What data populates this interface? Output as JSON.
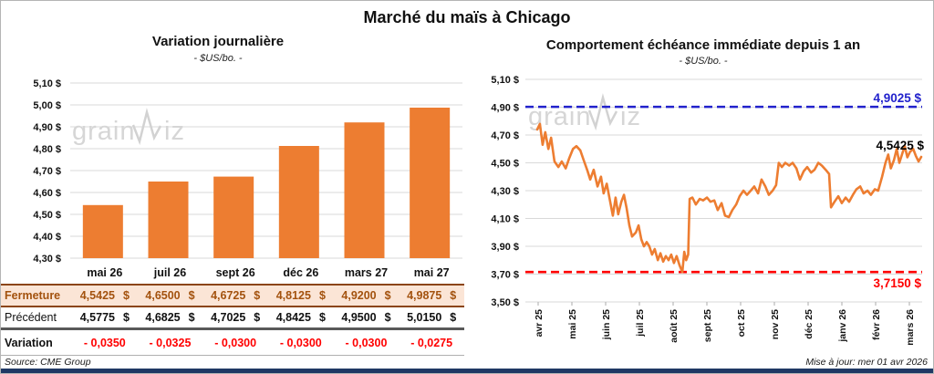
{
  "title": "Marché du maïs à Chicago",
  "watermark": {
    "prefix": "grain",
    "suffix": "iz"
  },
  "colors": {
    "accent_orange": "#ED7D31",
    "ref_blue": "#2222CC",
    "ref_red": "#FF0000",
    "grid": "#d9d9d9",
    "fermeture_bg": "#FBE5D6",
    "fermeture_text": "#A3520E",
    "bottom_bar": "#1F3864"
  },
  "chart_data": [
    {
      "type": "bar",
      "title": "Variation journalière",
      "subtitle": "- $US/bo. -",
      "categories": [
        "mai 26",
        "juil 26",
        "sept 26",
        "déc 26",
        "mars 27",
        "mai 27"
      ],
      "values": [
        4.5425,
        4.65,
        4.6725,
        4.8125,
        4.92,
        4.9875
      ],
      "ylim": [
        4.3,
        5.1
      ],
      "ytick_step": 0.1,
      "ytick_labels": [
        "5,10 $",
        "5,00 $",
        "4,90 $",
        "4,80 $",
        "4,70 $",
        "4,60 $",
        "4,50 $",
        "4,40 $",
        "4,30 $"
      ],
      "bar_color": "#ED7D31",
      "grid": true
    },
    {
      "type": "line",
      "title": "Comportement échéance immédiate depuis 1 an",
      "subtitle": "- $US/bo. -",
      "x_ticks": [
        "avr 25",
        "mai 25",
        "juin 25",
        "juil 25",
        "août 25",
        "sept 25",
        "oct 25",
        "nov 25",
        "déc 25",
        "janv 26",
        "févr 26",
        "mars 26"
      ],
      "ylim": [
        3.5,
        5.1
      ],
      "ytick_step": 0.2,
      "ytick_labels": [
        "5,10 $",
        "4,90 $",
        "4,70 $",
        "4,50 $",
        "4,30 $",
        "4,10 $",
        "3,90 $",
        "3,70 $",
        "3,50 $"
      ],
      "grid": true,
      "legend": "none",
      "ref_lines": [
        {
          "name": "high",
          "value": 4.9025,
          "label": "4,9025 $",
          "color": "#2222CC",
          "label_pos": "above"
        },
        {
          "name": "low",
          "value": 3.715,
          "label": "3,7150 $",
          "color": "#FF0000",
          "label_pos": "below"
        }
      ],
      "last_label": {
        "value": 4.5425,
        "label": "4,5425 $"
      },
      "series": [
        {
          "name": "échéance immédiate",
          "color": "#ED7D31",
          "points": [
            [
              0.0,
              4.74
            ],
            [
              0.007,
              4.78
            ],
            [
              0.014,
              4.63
            ],
            [
              0.021,
              4.72
            ],
            [
              0.029,
              4.6
            ],
            [
              0.036,
              4.68
            ],
            [
              0.045,
              4.51
            ],
            [
              0.055,
              4.47
            ],
            [
              0.064,
              4.51
            ],
            [
              0.074,
              4.46
            ],
            [
              0.083,
              4.53
            ],
            [
              0.093,
              4.6
            ],
            [
              0.102,
              4.62
            ],
            [
              0.112,
              4.59
            ],
            [
              0.121,
              4.52
            ],
            [
              0.131,
              4.44
            ],
            [
              0.138,
              4.38
            ],
            [
              0.147,
              4.45
            ],
            [
              0.157,
              4.33
            ],
            [
              0.166,
              4.4
            ],
            [
              0.173,
              4.28
            ],
            [
              0.181,
              4.35
            ],
            [
              0.19,
              4.22
            ],
            [
              0.197,
              4.12
            ],
            [
              0.204,
              4.25
            ],
            [
              0.211,
              4.13
            ],
            [
              0.219,
              4.22
            ],
            [
              0.226,
              4.27
            ],
            [
              0.233,
              4.17
            ],
            [
              0.24,
              4.05
            ],
            [
              0.247,
              3.97
            ],
            [
              0.257,
              4.0
            ],
            [
              0.264,
              4.05
            ],
            [
              0.271,
              3.95
            ],
            [
              0.278,
              3.9
            ],
            [
              0.285,
              3.93
            ],
            [
              0.292,
              3.9
            ],
            [
              0.299,
              3.84
            ],
            [
              0.306,
              3.88
            ],
            [
              0.314,
              3.8
            ],
            [
              0.321,
              3.85
            ],
            [
              0.328,
              3.79
            ],
            [
              0.335,
              3.83
            ],
            [
              0.342,
              3.8
            ],
            [
              0.349,
              3.84
            ],
            [
              0.356,
              3.78
            ],
            [
              0.363,
              3.83
            ],
            [
              0.371,
              3.76
            ],
            [
              0.378,
              3.715
            ],
            [
              0.383,
              3.86
            ],
            [
              0.388,
              3.8
            ],
            [
              0.393,
              3.84
            ],
            [
              0.397,
              4.24
            ],
            [
              0.404,
              4.25
            ],
            [
              0.413,
              4.2
            ],
            [
              0.423,
              4.24
            ],
            [
              0.432,
              4.23
            ],
            [
              0.442,
              4.25
            ],
            [
              0.451,
              4.22
            ],
            [
              0.461,
              4.23
            ],
            [
              0.47,
              4.16
            ],
            [
              0.48,
              4.21
            ],
            [
              0.489,
              4.12
            ],
            [
              0.499,
              4.11
            ],
            [
              0.508,
              4.16
            ],
            [
              0.518,
              4.2
            ],
            [
              0.527,
              4.26
            ],
            [
              0.537,
              4.3
            ],
            [
              0.546,
              4.27
            ],
            [
              0.556,
              4.3
            ],
            [
              0.565,
              4.33
            ],
            [
              0.575,
              4.28
            ],
            [
              0.584,
              4.38
            ],
            [
              0.594,
              4.33
            ],
            [
              0.603,
              4.27
            ],
            [
              0.613,
              4.3
            ],
            [
              0.622,
              4.34
            ],
            [
              0.629,
              4.5
            ],
            [
              0.637,
              4.47
            ],
            [
              0.646,
              4.5
            ],
            [
              0.656,
              4.48
            ],
            [
              0.665,
              4.5
            ],
            [
              0.675,
              4.46
            ],
            [
              0.684,
              4.38
            ],
            [
              0.694,
              4.44
            ],
            [
              0.703,
              4.47
            ],
            [
              0.713,
              4.43
            ],
            [
              0.722,
              4.45
            ],
            [
              0.732,
              4.5
            ],
            [
              0.741,
              4.48
            ],
            [
              0.751,
              4.45
            ],
            [
              0.76,
              4.42
            ],
            [
              0.765,
              4.18
            ],
            [
              0.774,
              4.22
            ],
            [
              0.784,
              4.26
            ],
            [
              0.793,
              4.21
            ],
            [
              0.803,
              4.25
            ],
            [
              0.812,
              4.22
            ],
            [
              0.822,
              4.27
            ],
            [
              0.831,
              4.31
            ],
            [
              0.841,
              4.33
            ],
            [
              0.85,
              4.28
            ],
            [
              0.86,
              4.3
            ],
            [
              0.869,
              4.27
            ],
            [
              0.879,
              4.31
            ],
            [
              0.888,
              4.3
            ],
            [
              0.898,
              4.4
            ],
            [
              0.907,
              4.5
            ],
            [
              0.914,
              4.56
            ],
            [
              0.921,
              4.46
            ],
            [
              0.929,
              4.52
            ],
            [
              0.936,
              4.6
            ],
            [
              0.943,
              4.5
            ],
            [
              0.95,
              4.56
            ],
            [
              0.957,
              4.62
            ],
            [
              0.964,
              4.54
            ],
            [
              0.971,
              4.58
            ],
            [
              0.979,
              4.6
            ],
            [
              0.986,
              4.55
            ],
            [
              0.993,
              4.51
            ],
            [
              1.0,
              4.5425
            ]
          ]
        }
      ]
    }
  ],
  "table": {
    "columns": [
      "",
      "mai 26",
      "juil 26",
      "sept 26",
      "déc 26",
      "mars 27",
      "mai 27"
    ],
    "rows": [
      {
        "key": "fermeture",
        "label": "Fermeture",
        "suffix": "$",
        "values": [
          "4,5425",
          "4,6500",
          "4,6725",
          "4,8125",
          "4,9200",
          "4,9875"
        ]
      },
      {
        "key": "precedent",
        "label": "Précédent",
        "suffix": "$",
        "values": [
          "4,5775",
          "4,6825",
          "4,7025",
          "4,8425",
          "4,9500",
          "5,0150"
        ]
      },
      {
        "key": "variation",
        "label": "Variation",
        "suffix": "",
        "values": [
          "- 0,0350",
          "- 0,0325",
          "- 0,0300",
          "- 0,0300",
          "- 0,0300",
          "- 0,0275"
        ]
      }
    ]
  },
  "footer": {
    "source": "Source: CME Group",
    "updated": "Mise à jour: mer 01 avr 2026"
  }
}
